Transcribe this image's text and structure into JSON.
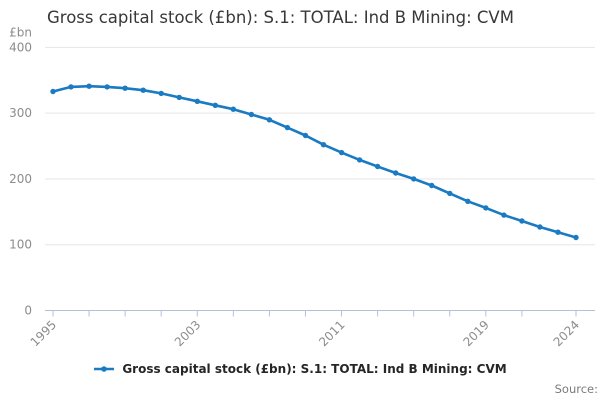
{
  "header": {
    "title": "Gross capital stock (£bn): S.1: TOTAL: Ind B Mining: CVM"
  },
  "y_axis_unit_label": "£bn",
  "source_label": "Source:",
  "legend": {
    "label": "Gross capital stock (£bn): S.1: TOTAL: Ind B Mining: CVM"
  },
  "colors": {
    "line": "#1a7ac2",
    "marker": "#1a7ac2",
    "gridline": "#e6e6e6",
    "axis": "#b3c0da",
    "tick_label": "#8c8c8c",
    "title_text": "#383838",
    "legend_text": "#262626",
    "source_text": "#7b7b7b"
  },
  "chart_data": {
    "type": "line",
    "title": "Gross capital stock (£bn): S.1: TOTAL: Ind B Mining: CVM",
    "xlabel": "",
    "ylabel": "£bn",
    "ylim": [
      0,
      400
    ],
    "y_ticks": [
      0,
      100,
      200,
      300,
      400
    ],
    "x_minor_tick_years": [
      1995,
      1997,
      1999,
      2001,
      2003,
      2005,
      2007,
      2009,
      2011,
      2013,
      2015,
      2017,
      2019,
      2021,
      2024
    ],
    "x_labeled_tick_years": [
      1995,
      2003,
      2011,
      2019,
      2024
    ],
    "x_tick_labels": [
      "1995",
      "2003",
      "2011",
      "2019",
      "2024"
    ],
    "grid": "horizontal",
    "legend_position": "bottom-center",
    "marker": "dot",
    "series": [
      {
        "name": "Gross capital stock (£bn): S.1: TOTAL: Ind B Mining: CVM",
        "x": [
          1995,
          1996,
          1997,
          1998,
          1999,
          2000,
          2001,
          2002,
          2003,
          2004,
          2005,
          2006,
          2007,
          2008,
          2009,
          2010,
          2011,
          2012,
          2013,
          2014,
          2015,
          2016,
          2017,
          2018,
          2019,
          2020,
          2021,
          2022,
          2023,
          2024
        ],
        "values": [
          333,
          340,
          341,
          340,
          338,
          335,
          330,
          324,
          318,
          312,
          306,
          298,
          290,
          278,
          266,
          252,
          240,
          229,
          219,
          209,
          200,
          190,
          178,
          166,
          156,
          145,
          136,
          127,
          119,
          111
        ]
      }
    ]
  }
}
